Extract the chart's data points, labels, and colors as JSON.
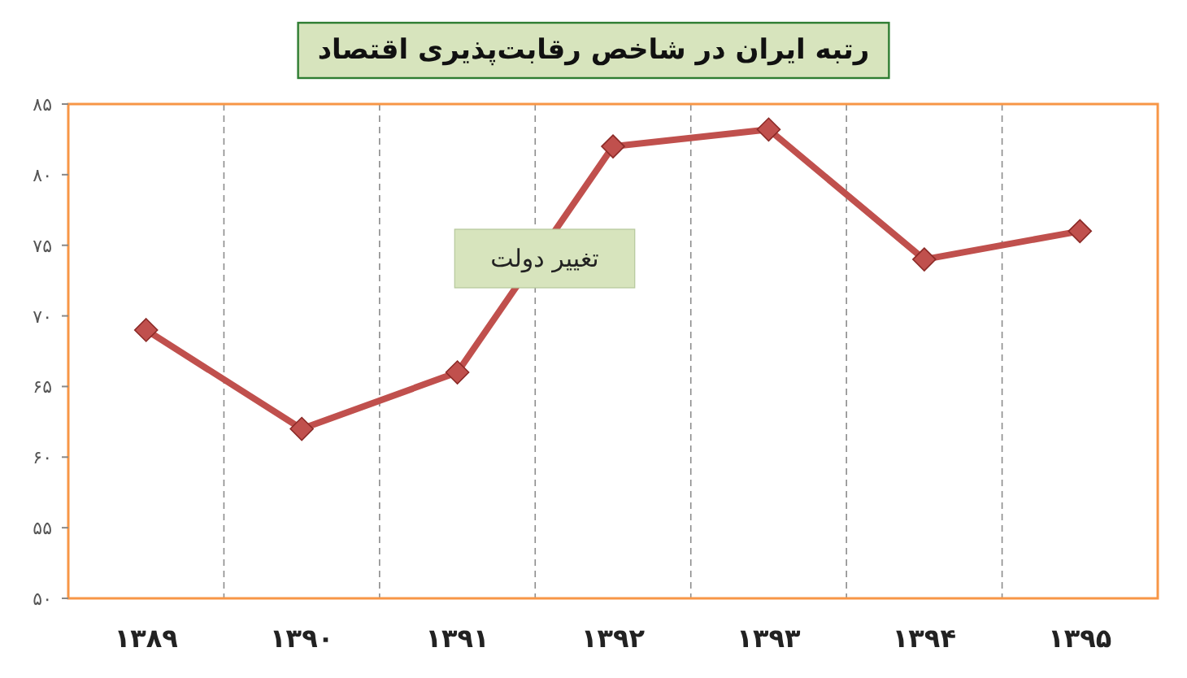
{
  "chart_data": {
    "type": "line",
    "title": "رتبه ایران در شاخص رقابت‌پذیری اقتصاد",
    "categories": [
      "۱۳۸۹",
      "۱۳۹۰",
      "۱۳۹۱",
      "۱۳۹۲",
      "۱۳۹۳",
      "۱۳۹۴",
      "۱۳۹۵"
    ],
    "series": [
      {
        "color": "#c0504d",
        "values": [
          69,
          62,
          66,
          82,
          83.2,
          74,
          76
        ]
      }
    ],
    "ylim": [
      50,
      85
    ],
    "yticks": [
      {
        "value": 50,
        "label": "۵۰"
      },
      {
        "value": 55,
        "label": "۵۵"
      },
      {
        "value": 60,
        "label": "۶۰"
      },
      {
        "value": 65,
        "label": "۶۵"
      },
      {
        "value": 70,
        "label": "۷۰"
      },
      {
        "value": 75,
        "label": "۷۵"
      },
      {
        "value": 80,
        "label": "۸۰"
      },
      {
        "value": 85,
        "label": "۸۵"
      }
    ],
    "annotations": [
      "تغییر دولت"
    ],
    "grid": "x",
    "marker": "diamond",
    "line_style": "solid"
  }
}
